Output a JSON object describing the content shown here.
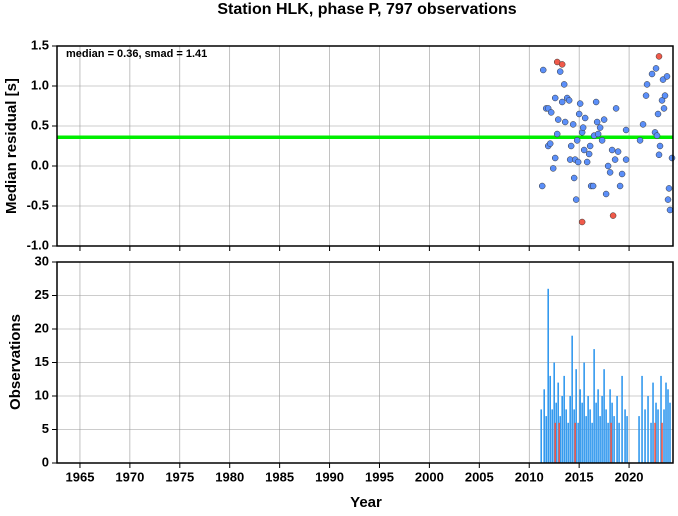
{
  "chart_data": [
    {
      "type": "scatter",
      "title": "Station HLK, phase P, 797 observations",
      "annotation": "median = 0.36, smad = 1.41",
      "median_line": 0.36,
      "median_color": "#00ee00",
      "y_label": "Median residual [s]",
      "xlim": [
        1962.7,
        2024.4
      ],
      "xticks": [
        1965,
        1970,
        1975,
        1980,
        1985,
        1990,
        1995,
        2000,
        2005,
        2010,
        2015,
        2020
      ],
      "ylim": [
        -1.0,
        1.5
      ],
      "yticks": [
        {
          "value": -1.0,
          "label": "-1.0"
        },
        -0.5,
        {
          "value": 0.0,
          "label": "0.0"
        },
        0.5,
        {
          "value": 1.0,
          "label": "1.0"
        },
        1.5
      ],
      "grid": true,
      "series": [
        {
          "color": "#5b8ff9",
          "x": [
            2011.3,
            2011.4,
            2011.7,
            2011.9,
            2011.9,
            2012.1,
            2012.2,
            2012.4,
            2012.6,
            2012.6,
            2012.8,
            2012.9,
            2013.1,
            2013.3,
            2013.5,
            2013.6,
            2013.8,
            2014.0,
            2014.1,
            2014.2,
            2014.4,
            2014.5,
            2014.6,
            2014.7,
            2014.8,
            2014.9,
            2015.0,
            2015.1,
            2015.3,
            2015.4,
            2015.5,
            2015.6,
            2015.8,
            2016.0,
            2016.1,
            2016.2,
            2016.4,
            2016.5,
            2016.7,
            2016.8,
            2016.9,
            2017.1,
            2017.3,
            2017.5,
            2017.7,
            2017.9,
            2018.1,
            2018.3,
            2018.6,
            2018.7,
            2018.9,
            2019.1,
            2019.3,
            2019.7,
            2019.7,
            2021.1,
            2021.4,
            2021.7,
            2021.8,
            2022.3,
            2022.6,
            2022.7,
            2022.8,
            2022.9,
            2023.0,
            2023.1,
            2023.3,
            2023.4,
            2023.5,
            2023.6,
            2023.8,
            2023.9,
            2024.0,
            2024.1,
            2024.3
          ],
          "values": [
            -0.25,
            1.2,
            0.72,
            0.72,
            0.25,
            0.28,
            0.67,
            -0.03,
            0.85,
            0.1,
            0.4,
            0.58,
            1.18,
            0.8,
            1.02,
            0.55,
            0.85,
            0.82,
            0.08,
            0.25,
            0.52,
            -0.15,
            0.08,
            -0.42,
            0.32,
            0.05,
            0.65,
            0.78,
            0.42,
            0.48,
            0.2,
            0.6,
            0.05,
            0.15,
            0.25,
            -0.25,
            -0.25,
            0.38,
            0.8,
            0.55,
            0.4,
            0.48,
            0.32,
            0.58,
            -0.35,
            0.0,
            -0.08,
            0.2,
            0.08,
            0.72,
            0.18,
            -0.25,
            -0.1,
            0.45,
            0.08,
            0.32,
            0.52,
            0.88,
            1.02,
            1.15,
            0.42,
            1.22,
            0.38,
            0.65,
            0.14,
            0.25,
            0.82,
            1.08,
            0.72,
            0.88,
            1.12,
            -0.42,
            -0.28,
            -0.55,
            0.1
          ]
        },
        {
          "color": "#f05a4a",
          "x": [
            2012.8,
            2013.3,
            2015.3,
            2018.4,
            2023.0
          ],
          "values": [
            1.3,
            1.27,
            -0.7,
            -0.62,
            1.37
          ]
        }
      ]
    },
    {
      "type": "bar",
      "x_label": "Year",
      "y_label": "Observations",
      "xlim": [
        1962.7,
        2024.4
      ],
      "xticks": [
        1965,
        1970,
        1975,
        1980,
        1985,
        1990,
        1995,
        2000,
        2005,
        2010,
        2015,
        2020
      ],
      "ylim": [
        0,
        30
      ],
      "yticks": [
        0,
        5,
        10,
        15,
        20,
        25,
        30
      ],
      "grid": true,
      "series": [
        {
          "color": "#3399ee",
          "x": [
            2011.2,
            2011.5,
            2011.7,
            2011.9,
            2012.1,
            2012.3,
            2012.5,
            2012.7,
            2012.9,
            2013.1,
            2013.3,
            2013.5,
            2013.7,
            2013.9,
            2014.1,
            2014.3,
            2014.5,
            2014.7,
            2014.9,
            2015.1,
            2015.3,
            2015.5,
            2015.7,
            2015.9,
            2016.1,
            2016.3,
            2016.5,
            2016.7,
            2016.9,
            2017.1,
            2017.3,
            2017.5,
            2017.7,
            2017.9,
            2018.1,
            2018.3,
            2018.5,
            2018.8,
            2019.0,
            2019.3,
            2019.6,
            2019.8,
            2021.0,
            2021.3,
            2021.6,
            2021.9,
            2022.2,
            2022.4,
            2022.7,
            2022.9,
            2023.2,
            2023.5,
            2023.7,
            2023.9,
            2024.1
          ],
          "values": [
            8,
            11,
            7,
            26,
            13,
            8,
            15,
            9,
            12,
            7,
            10,
            13,
            8,
            6,
            10,
            19,
            8,
            14,
            6,
            11,
            9,
            15,
            7,
            10,
            8,
            6,
            17,
            9,
            11,
            7,
            10,
            14,
            8,
            6,
            11,
            9,
            7,
            10,
            6,
            13,
            8,
            7,
            7,
            13,
            8,
            10,
            6,
            12,
            9,
            8,
            13,
            8,
            12,
            11,
            9
          ]
        },
        {
          "color": "#f05a4a",
          "x": [
            2012.6,
            2013.0,
            2014.6,
            2018.2,
            2022.6,
            2023.3
          ],
          "values": [
            6,
            6,
            6,
            6,
            6,
            6
          ]
        }
      ]
    }
  ]
}
